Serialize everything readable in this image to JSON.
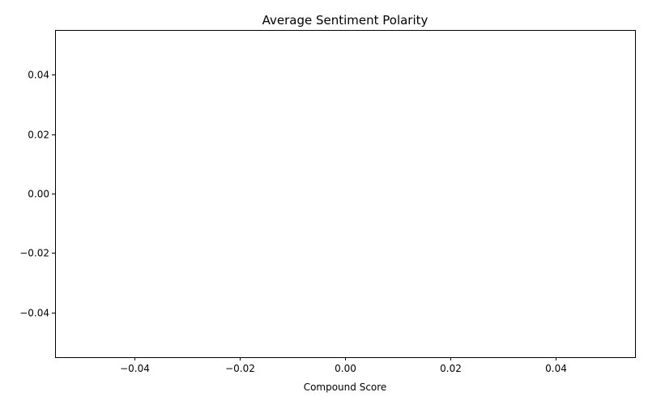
{
  "chart_data": {
    "type": "bar",
    "title": "Average Sentiment Polarity",
    "xlabel": "Compound Score",
    "ylabel": "",
    "categories": [],
    "values": [],
    "xlim": [
      -0.055,
      0.055
    ],
    "ylim": [
      -0.055,
      0.055
    ],
    "x_ticks": [
      -0.04,
      -0.02,
      0.0,
      0.02,
      0.04
    ],
    "x_tick_labels": [
      "−0.04",
      "−0.02",
      "0.00",
      "0.02",
      "0.04"
    ],
    "y_ticks": [
      0.04,
      0.02,
      0.0,
      -0.02,
      -0.04
    ],
    "y_tick_labels": [
      "0.04",
      "0.02",
      "0.00",
      "−0.02",
      "−0.04"
    ],
    "grid": false,
    "legend": "none"
  }
}
